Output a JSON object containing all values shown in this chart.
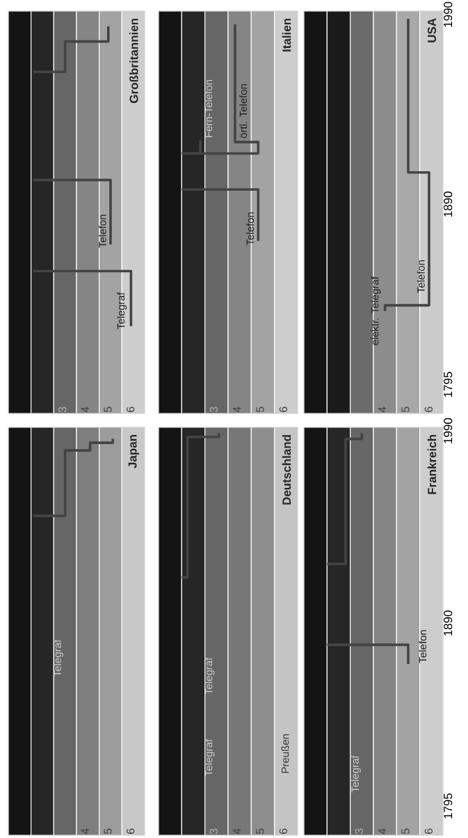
{
  "chart_data": [
    {
      "type": "line",
      "title": "Großbritannien",
      "xlim": [
        0.5,
        6.5
      ],
      "xticks": [
        3,
        4,
        5,
        6
      ],
      "ylim": [
        1782,
        1994
      ],
      "tick_labels": "x",
      "bands": [
        {
          "axis": "x",
          "from": 0.5,
          "to": 1.5,
          "color": "#141414"
        },
        {
          "axis": "x",
          "from": 1.5,
          "to": 2.5,
          "color": "#262626"
        },
        {
          "axis": "x",
          "from": 2.5,
          "to": 3.5,
          "color": "#666666"
        },
        {
          "axis": "x",
          "from": 3.5,
          "to": 4.5,
          "color": "#858585"
        },
        {
          "axis": "x",
          "from": 4.5,
          "to": 5.5,
          "color": "#a3a3a3"
        },
        {
          "axis": "x",
          "from": 5.5,
          "to": 6.5,
          "color": "#cdcdcd"
        }
      ],
      "annotations": [
        {
          "text": "Telegraf",
          "x": 5.9,
          "y": 1828
        },
        {
          "text": "Telefon",
          "x": 5.0,
          "y": 1871
        }
      ],
      "series": [
        {
          "color": "#444444",
          "x": [
            5.9,
            5.9,
            1.6
          ],
          "values": [
            1828,
            1857,
            1857
          ]
        },
        {
          "color": "#444444",
          "x": [
            5.0,
            5.0,
            1.6
          ],
          "values": [
            1871,
            1905,
            1905
          ]
        },
        {
          "color": "#444444",
          "x": [
            1.6,
            3.0,
            3.0,
            4.9,
            4.9
          ],
          "values": [
            1962,
            1962,
            1978,
            1978,
            1986
          ]
        }
      ]
    },
    {
      "type": "line",
      "title": "Italien",
      "xlim": [
        0.5,
        6.5
      ],
      "xticks": [
        3,
        4,
        5,
        6
      ],
      "ylim": [
        1782,
        1994
      ],
      "tick_labels": "x",
      "bands": [
        {
          "axis": "x",
          "from": 0.5,
          "to": 1.5,
          "color": "#141414"
        },
        {
          "axis": "x",
          "from": 1.5,
          "to": 2.5,
          "color": "#262626"
        },
        {
          "axis": "x",
          "from": 2.5,
          "to": 3.5,
          "color": "#666666"
        },
        {
          "axis": "x",
          "from": 3.5,
          "to": 4.5,
          "color": "#858585"
        },
        {
          "axis": "x",
          "from": 4.5,
          "to": 5.5,
          "color": "#a3a3a3"
        },
        {
          "axis": "x",
          "from": 5.5,
          "to": 6.5,
          "color": "#cdcdcd"
        }
      ],
      "annotations": [
        {
          "text": "Telefon",
          "x": 4.8,
          "y": 1873
        },
        {
          "text": "örtl. Telefon",
          "x": 3.8,
          "y": 1925
        },
        {
          "text": "Fern-Telefon",
          "x": 2.3,
          "y": 1926
        }
      ],
      "series": [
        {
          "color": "#444444",
          "x": [
            4.8,
            4.8,
            1.5
          ],
          "values": [
            1873,
            1900,
            1900
          ]
        },
        {
          "color": "#444444",
          "x": [
            2.3,
            2.3
          ],
          "values": [
            1919,
            1926
          ]
        },
        {
          "color": "#444444",
          "x": [
            1.5,
            4.8,
            4.8,
            3.8,
            3.8
          ],
          "values": [
            1919,
            1919,
            1925,
            1925,
            1987
          ]
        }
      ]
    },
    {
      "type": "line",
      "title": "USA",
      "xlim": [
        0.5,
        6.5
      ],
      "xticks": [
        4,
        5,
        6
      ],
      "ylim": [
        1782,
        1994
      ],
      "yticks": [
        1795,
        1890,
        1990
      ],
      "bands": [
        {
          "axis": "x",
          "from": 0.5,
          "to": 1.5,
          "color": "#141414"
        },
        {
          "axis": "x",
          "from": 1.5,
          "to": 2.5,
          "color": "#1a1a1a"
        },
        {
          "axis": "x",
          "from": 2.5,
          "to": 3.5,
          "color": "#6b6b6b"
        },
        {
          "axis": "x",
          "from": 3.5,
          "to": 4.5,
          "color": "#8c8c8c"
        },
        {
          "axis": "x",
          "from": 4.5,
          "to": 5.5,
          "color": "#a8a8a8"
        },
        {
          "axis": "x",
          "from": 5.5,
          "to": 6.5,
          "color": "#cbcbcb"
        }
      ],
      "annotations": [
        {
          "text": "elektr. Telegraf",
          "x": 4.0,
          "y": 1836
        },
        {
          "text": "Telefon",
          "x": 5.9,
          "y": 1839
        }
      ],
      "series": [
        {
          "color": "#444444",
          "x": [
            4.0,
            4.0,
            5.9,
            5.9,
            5.0,
            5.0
          ],
          "values": [
            1836,
            1839,
            1839,
            1909,
            1909,
            1990
          ]
        }
      ]
    },
    {
      "type": "line",
      "title": "Japan",
      "xlim": [
        0.5,
        6.5
      ],
      "xticks": [
        4,
        5,
        6
      ],
      "ylim": [
        1782,
        1994
      ],
      "tick_labels": "x",
      "bands": [
        {
          "axis": "x",
          "from": 0.5,
          "to": 1.5,
          "color": "#141414"
        },
        {
          "axis": "x",
          "from": 1.5,
          "to": 2.5,
          "color": "#262626"
        },
        {
          "axis": "x",
          "from": 2.5,
          "to": 3.5,
          "color": "#666666"
        },
        {
          "axis": "x",
          "from": 3.5,
          "to": 4.5,
          "color": "#7e7e7e"
        },
        {
          "axis": "x",
          "from": 4.5,
          "to": 5.5,
          "color": "#9c9c9c"
        },
        {
          "axis": "x",
          "from": 5.5,
          "to": 6.5,
          "color": "#c8c8c8"
        }
      ],
      "annotations": [
        "Telegraf"
      ],
      "series": [
        {
          "color": "#444444",
          "x": [
            1.6,
            3.0,
            3.0,
            4.1,
            4.1,
            5.1,
            5.1
          ],
          "values": [
            1948,
            1948,
            1982,
            1982,
            1986,
            1986,
            1988
          ]
        }
      ]
    },
    {
      "type": "line",
      "title": "Deutschland",
      "xlim": [
        0.5,
        6.5
      ],
      "xticks": [
        3,
        4,
        5,
        6
      ],
      "ylim": [
        1782,
        1994
      ],
      "tick_labels": "x",
      "bands": [
        {
          "axis": "x",
          "from": 0.5,
          "to": 1.5,
          "color": "#141414"
        },
        {
          "axis": "x",
          "from": 1.5,
          "to": 2.5,
          "color": "#262626"
        },
        {
          "axis": "x",
          "from": 2.5,
          "to": 3.5,
          "color": "#666666"
        },
        {
          "axis": "x",
          "from": 3.5,
          "to": 4.5,
          "color": "#777777"
        },
        {
          "axis": "x",
          "from": 4.5,
          "to": 5.5,
          "color": "#8e8e8e"
        },
        {
          "axis": "x",
          "from": 5.5,
          "to": 6.5,
          "color": "#c4c4c4"
        }
      ],
      "annotations": [
        "Preußen",
        "Telegraf",
        "Telegraf"
      ],
      "series": [
        {
          "color": "#444444",
          "x": [
            1.5,
            1.75,
            1.75,
            3.1,
            3.1
          ],
          "values": [
            1916,
            1916,
            1989,
            1989,
            1991
          ]
        }
      ]
    },
    {
      "type": "line",
      "title": "Frankreich",
      "xlim": [
        0.5,
        6.5
      ],
      "xticks": [
        3,
        4,
        5,
        6
      ],
      "ylim": [
        1782,
        1994
      ],
      "yticks": [
        1795,
        1890,
        1990
      ],
      "bands": [
        {
          "axis": "x",
          "from": 0.5,
          "to": 1.5,
          "color": "#141414"
        },
        {
          "axis": "x",
          "from": 1.5,
          "to": 2.5,
          "color": "#262626"
        },
        {
          "axis": "x",
          "from": 2.5,
          "to": 3.5,
          "color": "#666666"
        },
        {
          "axis": "x",
          "from": 3.5,
          "to": 4.5,
          "color": "#858585"
        },
        {
          "axis": "x",
          "from": 4.5,
          "to": 5.5,
          "color": "#a3a3a3"
        },
        {
          "axis": "x",
          "from": 5.5,
          "to": 6.5,
          "color": "#cdcdcd"
        }
      ],
      "annotations": [
        "Telegraf",
        {
          "text": "Telefon",
          "x": 5.0,
          "y": 1871
        }
      ],
      "series": [
        {
          "color": "#444444",
          "x": [
            5.0,
            5.0,
            1.5
          ],
          "values": [
            1871,
            1881,
            1881
          ]
        },
        {
          "color": "#444444",
          "x": [
            1.5,
            2.3,
            2.3,
            3.0,
            3.0
          ],
          "values": [
            1923,
            1923,
            1988,
            1988,
            1991
          ]
        }
      ]
    }
  ]
}
